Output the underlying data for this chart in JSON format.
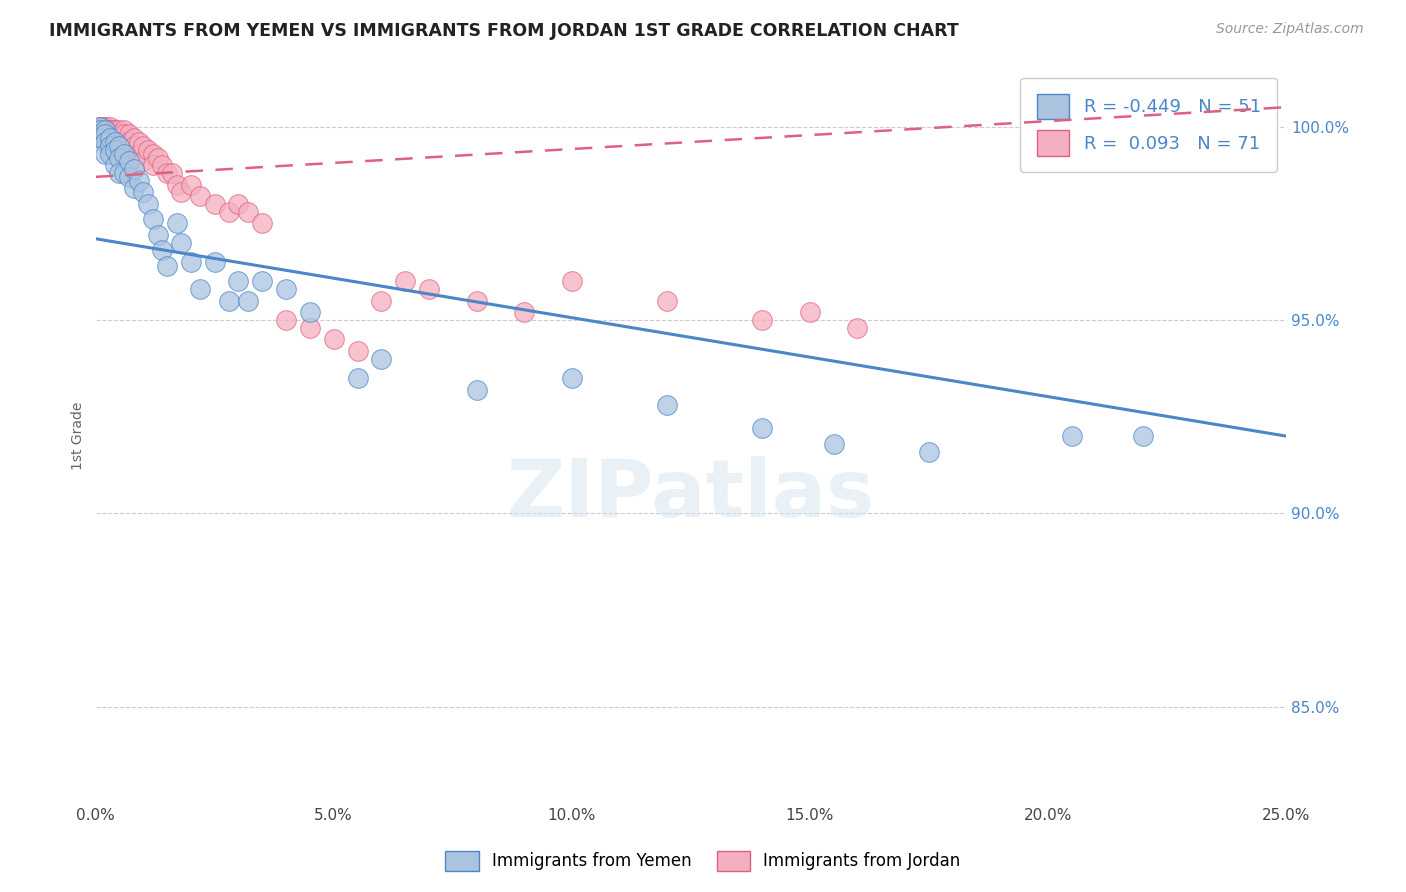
{
  "title": "IMMIGRANTS FROM YEMEN VS IMMIGRANTS FROM JORDAN 1ST GRADE CORRELATION CHART",
  "source": "Source: ZipAtlas.com",
  "ylabel": "1st Grade",
  "xmin": 0.0,
  "xmax": 0.25,
  "ymin": 0.825,
  "ymax": 1.015,
  "yticks": [
    0.85,
    0.9,
    0.95,
    1.0
  ],
  "ytick_labels": [
    "85.0%",
    "90.0%",
    "95.0%",
    "100.0%"
  ],
  "xticks": [
    0.0,
    0.05,
    0.1,
    0.15,
    0.2,
    0.25
  ],
  "xtick_labels": [
    "0.0%",
    "5.0%",
    "10.0%",
    "15.0%",
    "20.0%",
    "25.0%"
  ],
  "blue_R": -0.449,
  "blue_N": 51,
  "pink_R": 0.093,
  "pink_N": 71,
  "blue_color": "#aac4e0",
  "pink_color": "#f4afc0",
  "blue_line_color": "#4a86c8",
  "pink_line_color": "#e06080",
  "watermark_text": "ZIPatlas",
  "blue_trend_x0": 0.0,
  "blue_trend_y0": 0.971,
  "blue_trend_x1": 0.25,
  "blue_trend_y1": 0.92,
  "pink_trend_x0": 0.0,
  "pink_trend_y0": 0.987,
  "pink_trend_x1": 0.25,
  "pink_trend_y1": 1.005,
  "blue_scatter_x": [
    0.001,
    0.001,
    0.001,
    0.001,
    0.002,
    0.002,
    0.002,
    0.002,
    0.003,
    0.003,
    0.003,
    0.004,
    0.004,
    0.004,
    0.005,
    0.005,
    0.005,
    0.006,
    0.006,
    0.007,
    0.007,
    0.008,
    0.008,
    0.009,
    0.01,
    0.011,
    0.012,
    0.013,
    0.014,
    0.015,
    0.017,
    0.018,
    0.02,
    0.022,
    0.025,
    0.028,
    0.03,
    0.032,
    0.035,
    0.04,
    0.045,
    0.055,
    0.06,
    0.08,
    0.1,
    0.12,
    0.14,
    0.155,
    0.175,
    0.205,
    0.22
  ],
  "blue_scatter_y": [
    1.0,
    0.999,
    0.998,
    0.997,
    0.999,
    0.998,
    0.996,
    0.993,
    0.997,
    0.995,
    0.993,
    0.996,
    0.994,
    0.99,
    0.995,
    0.992,
    0.988,
    0.993,
    0.988,
    0.991,
    0.987,
    0.989,
    0.984,
    0.986,
    0.983,
    0.98,
    0.976,
    0.972,
    0.968,
    0.964,
    0.975,
    0.97,
    0.965,
    0.958,
    0.965,
    0.955,
    0.96,
    0.955,
    0.96,
    0.958,
    0.952,
    0.935,
    0.94,
    0.932,
    0.935,
    0.928,
    0.922,
    0.918,
    0.916,
    0.92,
    0.92
  ],
  "pink_scatter_x": [
    0.001,
    0.001,
    0.001,
    0.001,
    0.001,
    0.002,
    0.002,
    0.002,
    0.002,
    0.002,
    0.002,
    0.002,
    0.003,
    0.003,
    0.003,
    0.003,
    0.003,
    0.003,
    0.004,
    0.004,
    0.004,
    0.004,
    0.004,
    0.005,
    0.005,
    0.005,
    0.005,
    0.006,
    0.006,
    0.006,
    0.006,
    0.007,
    0.007,
    0.007,
    0.008,
    0.008,
    0.008,
    0.009,
    0.009,
    0.01,
    0.01,
    0.011,
    0.012,
    0.012,
    0.013,
    0.014,
    0.015,
    0.016,
    0.017,
    0.018,
    0.02,
    0.022,
    0.025,
    0.028,
    0.03,
    0.032,
    0.035,
    0.04,
    0.045,
    0.05,
    0.055,
    0.06,
    0.065,
    0.07,
    0.08,
    0.09,
    0.1,
    0.12,
    0.14,
    0.15,
    0.16
  ],
  "pink_scatter_y": [
    1.0,
    1.0,
    1.0,
    0.999,
    0.998,
    1.0,
    1.0,
    0.999,
    0.999,
    0.998,
    0.998,
    0.997,
    1.0,
    0.999,
    0.999,
    0.998,
    0.997,
    0.996,
    0.999,
    0.999,
    0.998,
    0.997,
    0.996,
    0.999,
    0.998,
    0.997,
    0.995,
    0.999,
    0.998,
    0.996,
    0.994,
    0.998,
    0.996,
    0.993,
    0.997,
    0.995,
    0.992,
    0.996,
    0.993,
    0.995,
    0.991,
    0.994,
    0.993,
    0.99,
    0.992,
    0.99,
    0.988,
    0.988,
    0.985,
    0.983,
    0.985,
    0.982,
    0.98,
    0.978,
    0.98,
    0.978,
    0.975,
    0.95,
    0.948,
    0.945,
    0.942,
    0.955,
    0.96,
    0.958,
    0.955,
    0.952,
    0.96,
    0.955,
    0.95,
    0.952,
    0.948
  ]
}
